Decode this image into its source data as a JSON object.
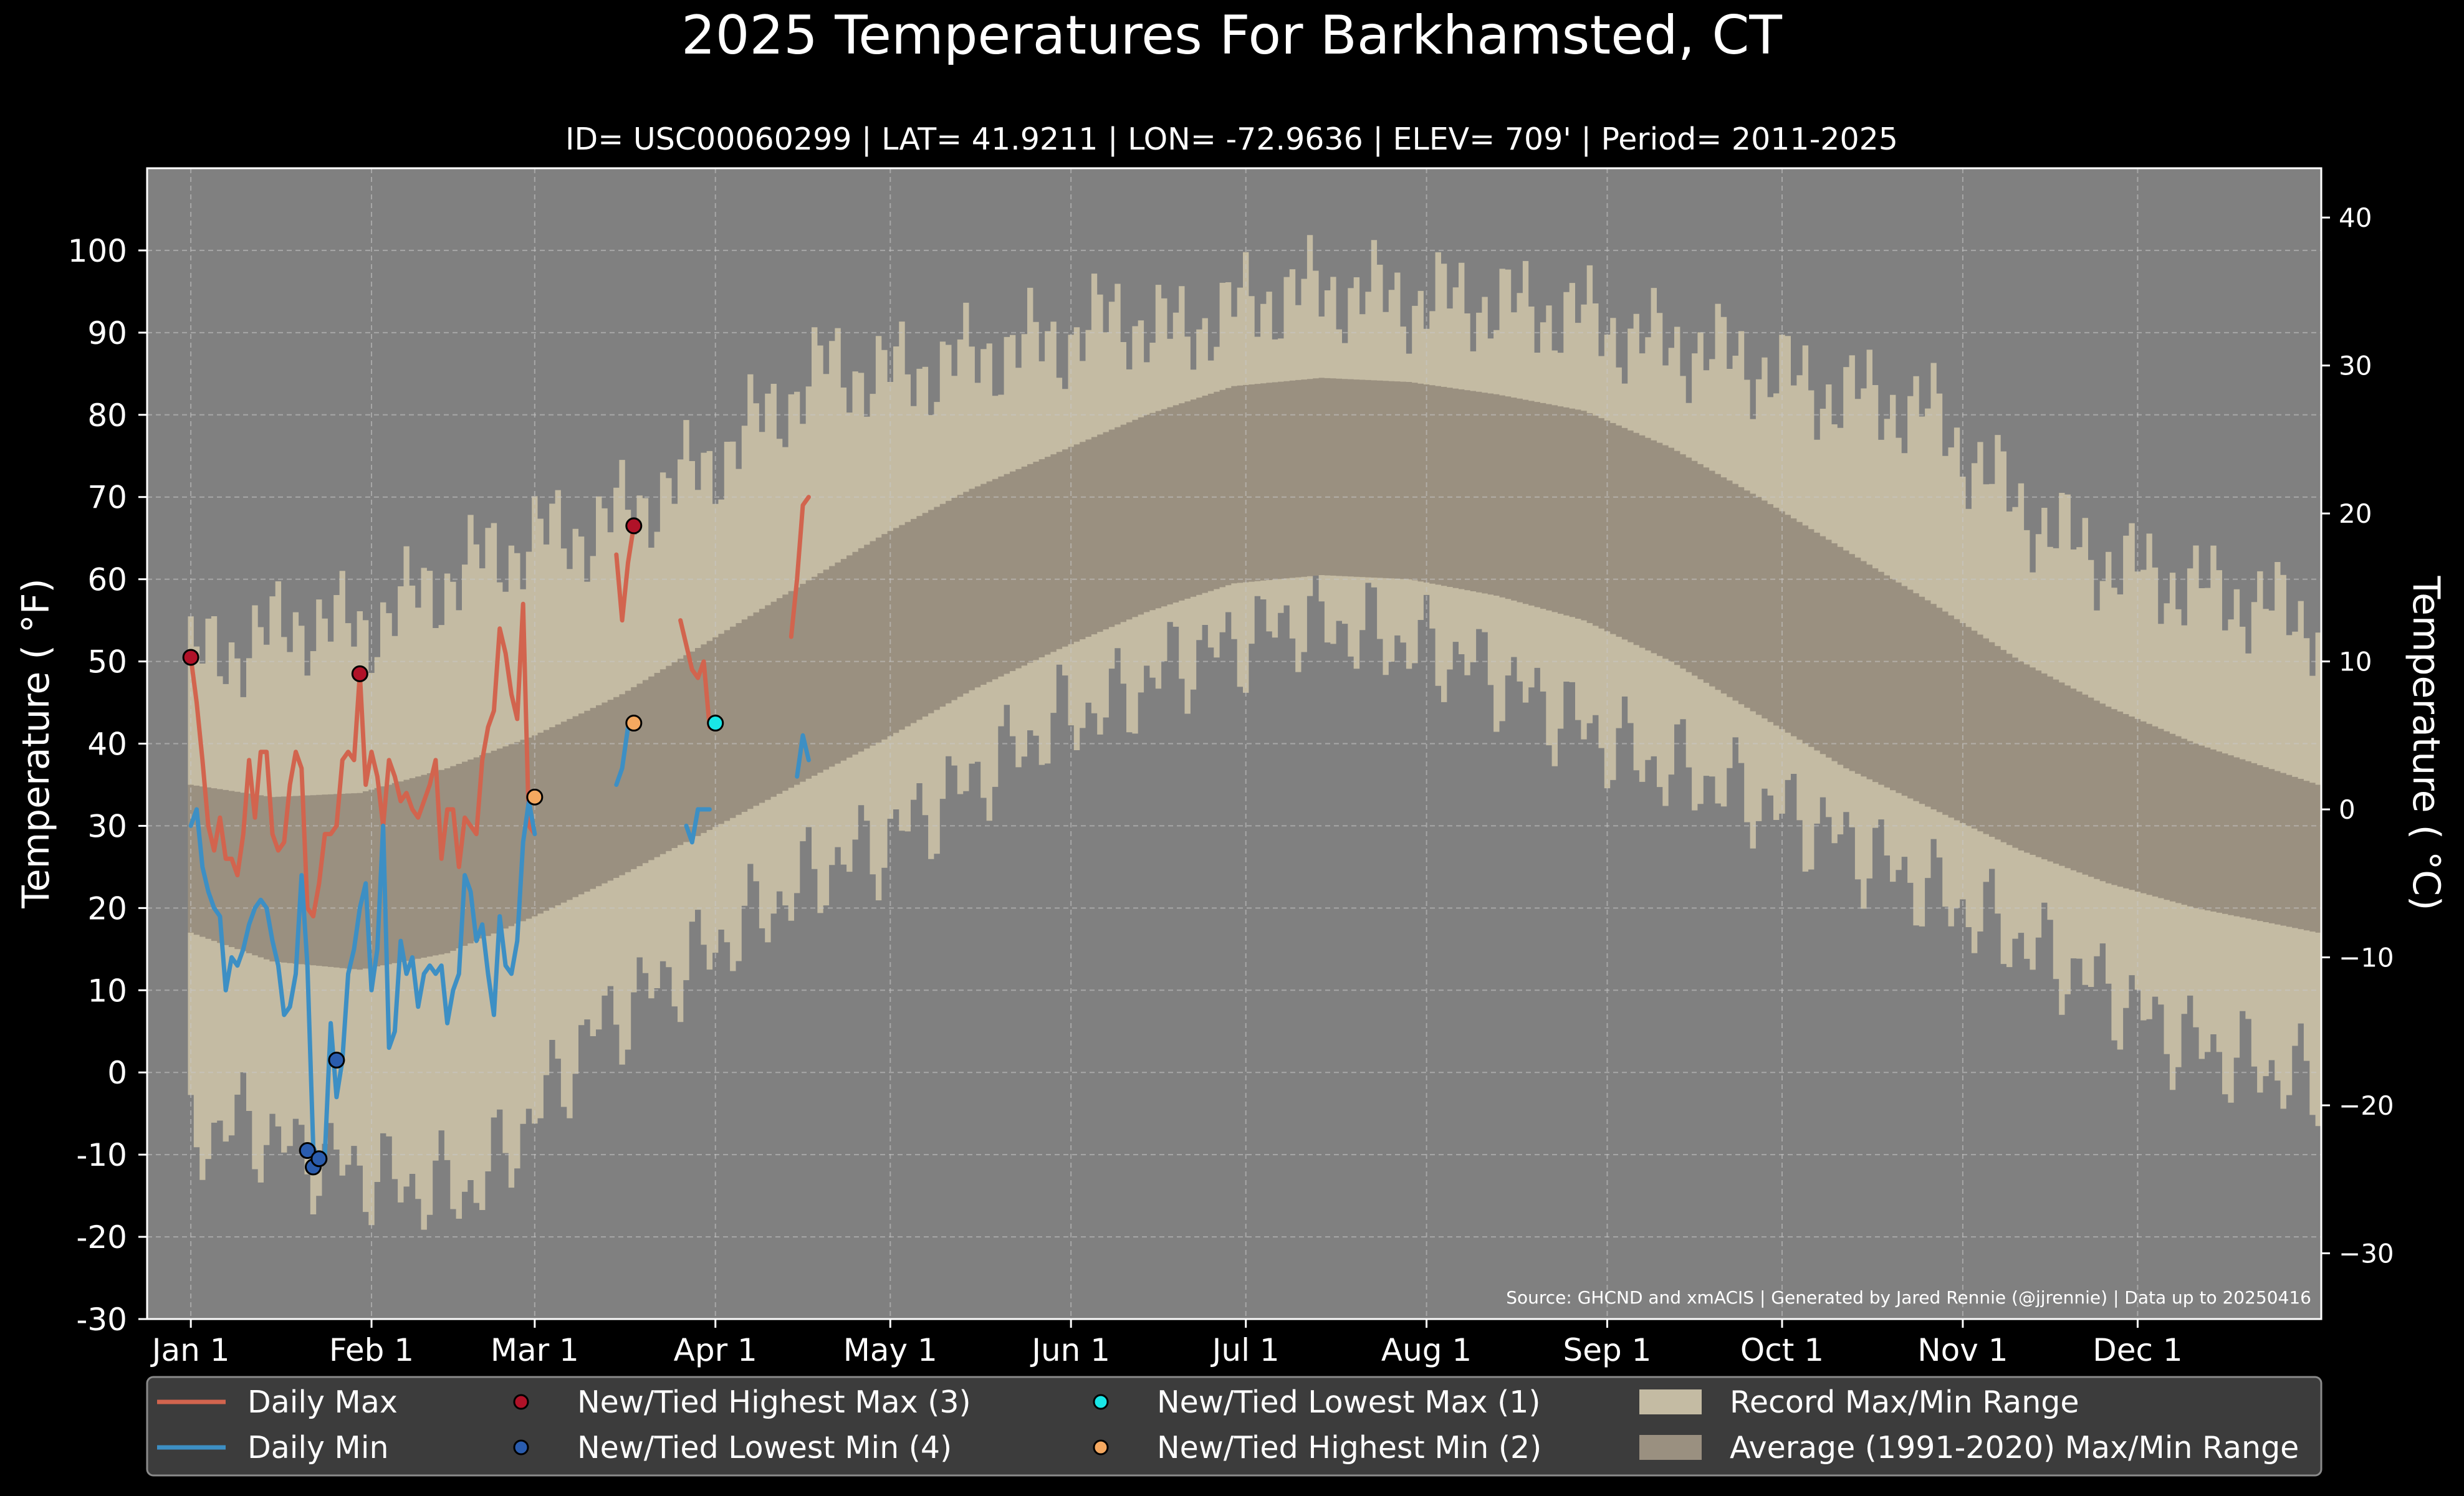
{
  "chart_data": {
    "type": "line",
    "title": "2025 Temperatures For Barkhamsted, CT",
    "subtitle": "ID= USC00060299 | LAT= 41.9211 | LON= -72.9636 | ELEV= 709' | Period= 2011-2025",
    "ylabel": "Temperature ( °F)",
    "ylabel_right": "Temperature ( °C)",
    "source": "Source: GHCND and xmACIS | Generated by Jared Rennie (@jjrennie) | Data up to 20250416",
    "ylim": [
      -30,
      110
    ],
    "y_ticks": [
      -30,
      -20,
      -10,
      0,
      10,
      20,
      30,
      40,
      50,
      60,
      70,
      80,
      90,
      100
    ],
    "y_ticks_right": [
      -30,
      -20,
      -10,
      0,
      10,
      20,
      30,
      40
    ],
    "x_ticks": [
      {
        "day": 1,
        "label": "Jan 1"
      },
      {
        "day": 32,
        "label": "Feb 1"
      },
      {
        "day": 60,
        "label": "Mar 1"
      },
      {
        "day": 91,
        "label": "Apr 1"
      },
      {
        "day": 121,
        "label": "May 1"
      },
      {
        "day": 152,
        "label": "Jun 1"
      },
      {
        "day": 182,
        "label": "Jul 1"
      },
      {
        "day": 213,
        "label": "Aug 1"
      },
      {
        "day": 244,
        "label": "Sep 1"
      },
      {
        "day": 274,
        "label": "Oct 1"
      },
      {
        "day": 305,
        "label": "Nov 1"
      },
      {
        "day": 335,
        "label": "Dec 1"
      }
    ],
    "grid": true,
    "legend_position": "bottom",
    "colors": {
      "plot_bg": "#808080",
      "record_band": "#c4bba3",
      "average_band": "#9a9080",
      "daily_max": "#d2644e",
      "daily_min": "#3d8fc4",
      "new_high_max": "#b01228",
      "new_low_min": "#2a5cae",
      "new_low_max": "#19e6e6",
      "new_high_min": "#f4a860"
    },
    "record_range": {
      "days": [
        1,
        10,
        20,
        30,
        40,
        50,
        60,
        70,
        80,
        90,
        100,
        110,
        120,
        130,
        140,
        150,
        160,
        170,
        180,
        190,
        200,
        210,
        220,
        230,
        240,
        250,
        260,
        270,
        280,
        290,
        300,
        310,
        320,
        330,
        340,
        350,
        360,
        366
      ],
      "max": [
        50,
        52,
        55,
        54,
        58,
        62,
        65,
        66,
        70,
        74,
        80,
        86,
        85,
        86,
        88,
        89,
        92,
        90,
        93,
        95,
        95,
        94,
        94,
        93,
        92,
        89,
        88,
        86,
        83,
        82,
        80,
        72,
        66,
        62,
        60,
        58,
        56,
        55
      ],
      "min": [
        -8,
        -6,
        -10,
        -12,
        -14,
        -14,
        -5,
        5,
        10,
        15,
        20,
        25,
        28,
        33,
        38,
        43,
        45,
        50,
        52,
        55,
        54,
        52,
        50,
        46,
        42,
        38,
        36,
        33,
        30,
        26,
        22,
        18,
        14,
        10,
        5,
        2,
        0,
        -2
      ]
    },
    "average_range": {
      "days": [
        1,
        15,
        30,
        45,
        60,
        75,
        90,
        105,
        120,
        135,
        150,
        165,
        180,
        195,
        210,
        225,
        240,
        255,
        270,
        285,
        300,
        315,
        330,
        345,
        366
      ],
      "max": [
        35,
        33.5,
        34,
        37,
        41,
        46,
        52.5,
        59,
        65.5,
        71,
        75.5,
        80,
        83.5,
        84.5,
        84,
        82.5,
        80.5,
        76,
        70,
        63.5,
        57,
        50,
        44.5,
        40,
        35
      ],
      "min": [
        17,
        13.5,
        12.5,
        14.5,
        19,
        24,
        29.5,
        35,
        40.5,
        46.5,
        51.5,
        56,
        59.5,
        60.5,
        60,
        58,
        55,
        50,
        43.5,
        37,
        32,
        27,
        23,
        20,
        17
      ]
    },
    "series": [
      {
        "name": "Daily Max",
        "segments": [
          {
            "days": [
              1,
              2,
              3,
              4,
              5,
              6,
              7,
              8,
              9,
              10,
              11,
              12,
              13,
              14,
              15,
              16,
              17,
              18,
              19,
              20,
              21,
              22,
              23,
              24,
              25,
              26,
              27,
              28,
              29,
              30,
              31,
              32,
              33,
              34,
              35,
              36,
              37,
              38,
              39,
              40,
              41,
              42,
              43,
              44,
              45,
              46,
              47,
              48,
              49,
              50,
              51,
              52,
              53,
              54,
              55,
              56,
              57,
              58,
              59,
              60
            ],
            "values": [
              50.5,
              45,
              38,
              30,
              27,
              31,
              26,
              26,
              24,
              29,
              38,
              31,
              39,
              39,
              29,
              27,
              28,
              35,
              39,
              37,
              20,
              19,
              23,
              29,
              29,
              30,
              38,
              39,
              38,
              48.5,
              35,
              39,
              36,
              30,
              38,
              36,
              33,
              34,
              32,
              31,
              33,
              35,
              38,
              26,
              32,
              32,
              25,
              31,
              30,
              29,
              38,
              42,
              44,
              54,
              51,
              46,
              43,
              57,
              30,
              29
            ]
          },
          {
            "days": [
              74,
              75,
              76,
              77
            ],
            "values": [
              63,
              55,
              62,
              66.5
            ]
          },
          {
            "days": [
              85,
              86,
              87,
              88,
              89,
              90
            ],
            "values": [
              55,
              52,
              49,
              48,
              50,
              42
            ]
          },
          {
            "days": [
              104,
              105,
              106,
              107
            ],
            "values": [
              53,
              60,
              69,
              70
            ]
          }
        ]
      },
      {
        "name": "Daily Min",
        "segments": [
          {
            "days": [
              1,
              2,
              3,
              4,
              5,
              6,
              7,
              8,
              9,
              10,
              11,
              12,
              13,
              14,
              15,
              16,
              17,
              18,
              19,
              20,
              21,
              22,
              23,
              24,
              25,
              26,
              27,
              28,
              29,
              30,
              31,
              32,
              33,
              34,
              35,
              36,
              37,
              38,
              39,
              40,
              41,
              42,
              43,
              44,
              45,
              46,
              47,
              48,
              49,
              50,
              51,
              52,
              53,
              54,
              55,
              56,
              57,
              58,
              59,
              60
            ],
            "values": [
              30,
              32,
              25,
              22,
              20,
              19,
              10,
              14,
              13,
              15,
              18,
              20,
              21,
              20,
              16,
              13,
              7,
              8,
              12,
              24,
              13,
              -9,
              -11,
              -10,
              6,
              -3,
              1.5,
              12,
              15,
              20,
              23,
              10,
              15,
              30,
              3,
              5,
              16,
              12,
              14,
              8,
              12,
              13,
              12,
              13,
              6,
              10,
              12,
              24,
              22,
              16,
              18,
              12,
              7,
              19,
              13,
              12,
              16,
              28,
              33,
              29
            ]
          },
          {
            "days": [
              74,
              75,
              76
            ],
            "values": [
              35,
              37,
              42
            ]
          },
          {
            "days": [
              86,
              87,
              88,
              89,
              90
            ],
            "values": [
              30,
              28,
              32,
              32,
              32
            ]
          },
          {
            "days": [
              105,
              106,
              107
            ],
            "values": [
              36,
              41,
              38
            ]
          }
        ]
      }
    ],
    "markers": [
      {
        "name": "New/Tied Highest Max (3)",
        "points": [
          [
            1,
            50.5
          ],
          [
            30,
            48.5
          ],
          [
            77,
            66.5
          ]
        ]
      },
      {
        "name": "New/Tied Lowest Min (4)",
        "points": [
          [
            21,
            -9.5
          ],
          [
            22,
            -11.5
          ],
          [
            23,
            -10.5
          ],
          [
            26,
            1.5
          ]
        ]
      },
      {
        "name": "New/Tied Lowest Max (1)",
        "points": [
          [
            91,
            42.5
          ]
        ]
      },
      {
        "name": "New/Tied Highest Min (2)",
        "points": [
          [
            60,
            33.5
          ],
          [
            77,
            42.5
          ]
        ]
      }
    ],
    "legend": [
      {
        "label": "Daily Max",
        "kind": "line",
        "color_key": "daily_max"
      },
      {
        "label": "Daily Min",
        "kind": "line",
        "color_key": "daily_min"
      },
      {
        "label": "New/Tied Highest Max (3)",
        "kind": "dot",
        "color_key": "new_high_max"
      },
      {
        "label": "New/Tied Lowest Min (4)",
        "kind": "dot",
        "color_key": "new_low_min"
      },
      {
        "label": "New/Tied Lowest Max (1)",
        "kind": "dot",
        "color_key": "new_low_max"
      },
      {
        "label": "New/Tied Highest Min (2)",
        "kind": "dot",
        "color_key": "new_high_min"
      },
      {
        "label": "Record Max/Min Range",
        "kind": "patch",
        "color_key": "record_band"
      },
      {
        "label": "Average (1991-2020) Max/Min Range",
        "kind": "patch",
        "color_key": "average_band"
      }
    ]
  }
}
